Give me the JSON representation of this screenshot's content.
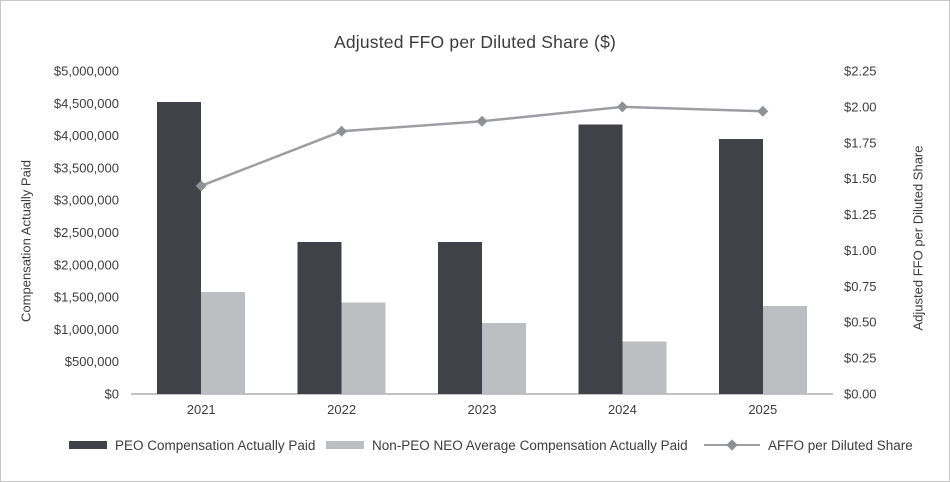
{
  "chart_data": {
    "type": "combo",
    "title": "Adjusted FFO per Diluted Share ($)",
    "categories": [
      "2021",
      "2022",
      "2023",
      "2024",
      "2025"
    ],
    "series": [
      {
        "name": "PEO Compensation Actually Paid",
        "type": "bar",
        "axis": "left",
        "color": "#414247",
        "values": [
          4520000,
          2350000,
          2350000,
          4170000,
          3950000
        ]
      },
      {
        "name": "Non-PEO NEO Average Compensation Actually Paid",
        "type": "bar",
        "axis": "left",
        "color": "#bdbec2",
        "values": [
          1580000,
          1420000,
          1100000,
          810000,
          1360000
        ]
      },
      {
        "name": "AFFO per Diluted Share",
        "type": "line",
        "axis": "right",
        "color": "#9d9ea1",
        "marker": "diamond",
        "marker_color": "#8f9093",
        "values": [
          1.45,
          1.83,
          1.9,
          2.0,
          1.97
        ]
      }
    ],
    "left_axis": {
      "label": "Compensation Actually Paid",
      "min": 0,
      "max": 5000000,
      "step": 500000,
      "ticks": [
        "$0",
        "$500,000",
        "$1,000,000",
        "$1,500,000",
        "$2,000,000",
        "$2,500,000",
        "$3,000,000",
        "$3,500,000",
        "$4,000,000",
        "$4,500,000",
        "$5,000,000"
      ]
    },
    "right_axis": {
      "label": "Adjusted FFO per Diluted Share",
      "min": 0,
      "max": 2.25,
      "step": 0.25,
      "ticks": [
        "$0.00",
        "$0.25",
        "$0.50",
        "$0.75",
        "$1.00",
        "$1.25",
        "$1.50",
        "$1.75",
        "$2.00",
        "$2.25"
      ]
    },
    "grid": false,
    "legend_position": "bottom",
    "axis_line_color": "#c3c3c3"
  }
}
